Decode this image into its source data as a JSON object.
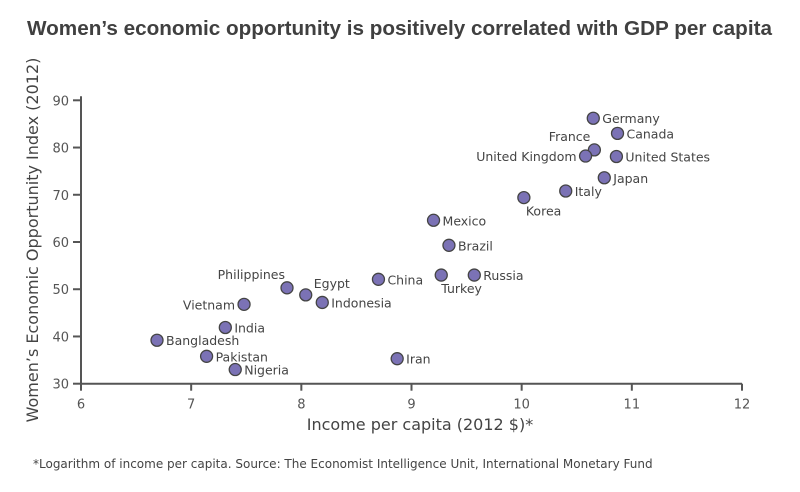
{
  "chart_data": {
    "type": "scatter",
    "title": "Women’s economic opportunity is positively correlated with GDP per capita",
    "xlabel": "Income per capita (2012 $)*",
    "ylabel": "Women’s Economic Opportunity Index (2012)",
    "footnote": "*Logarithm of income per capita.  Source: The Economist Intelligence Unit, International Monetary Fund",
    "xlim": [
      6,
      12
    ],
    "ylim": [
      30,
      90
    ],
    "xticks": [
      "6",
      "7",
      "8",
      "9",
      "10",
      "11",
      "12"
    ],
    "yticks": [
      "30",
      "40",
      "50",
      "60",
      "70",
      "80",
      "90"
    ],
    "grid": false,
    "marker_color": "#7b72b5",
    "marker_edge_color": "#444444",
    "points": [
      {
        "label": "Germany",
        "x": 10.65,
        "y": 86.2
      },
      {
        "label": "Canada",
        "x": 10.87,
        "y": 83.0
      },
      {
        "label": "France",
        "x": 10.66,
        "y": 79.5
      },
      {
        "label": "United Kingdom",
        "x": 10.58,
        "y": 78.2
      },
      {
        "label": "United States",
        "x": 10.86,
        "y": 78.1
      },
      {
        "label": "Japan",
        "x": 10.75,
        "y": 73.6
      },
      {
        "label": "Italy",
        "x": 10.4,
        "y": 70.8
      },
      {
        "label": "Korea",
        "x": 10.02,
        "y": 69.4
      },
      {
        "label": "Mexico",
        "x": 9.2,
        "y": 64.6
      },
      {
        "label": "Brazil",
        "x": 9.34,
        "y": 59.3
      },
      {
        "label": "Turkey",
        "x": 9.27,
        "y": 53.0
      },
      {
        "label": "Russia",
        "x": 9.57,
        "y": 53.0
      },
      {
        "label": "China",
        "x": 8.7,
        "y": 52.1
      },
      {
        "label": "Iran",
        "x": 8.87,
        "y": 35.3
      },
      {
        "label": "Philippines",
        "x": 7.87,
        "y": 50.3
      },
      {
        "label": "Egypt",
        "x": 8.04,
        "y": 48.8
      },
      {
        "label": "Indonesia",
        "x": 8.19,
        "y": 47.2
      },
      {
        "label": "Vietnam",
        "x": 7.48,
        "y": 46.8
      },
      {
        "label": "India",
        "x": 7.31,
        "y": 41.9
      },
      {
        "label": "Bangladesh",
        "x": 6.69,
        "y": 39.2
      },
      {
        "label": "Pakistan",
        "x": 7.14,
        "y": 35.8
      },
      {
        "label": "Nigeria",
        "x": 7.4,
        "y": 33.0
      }
    ]
  }
}
